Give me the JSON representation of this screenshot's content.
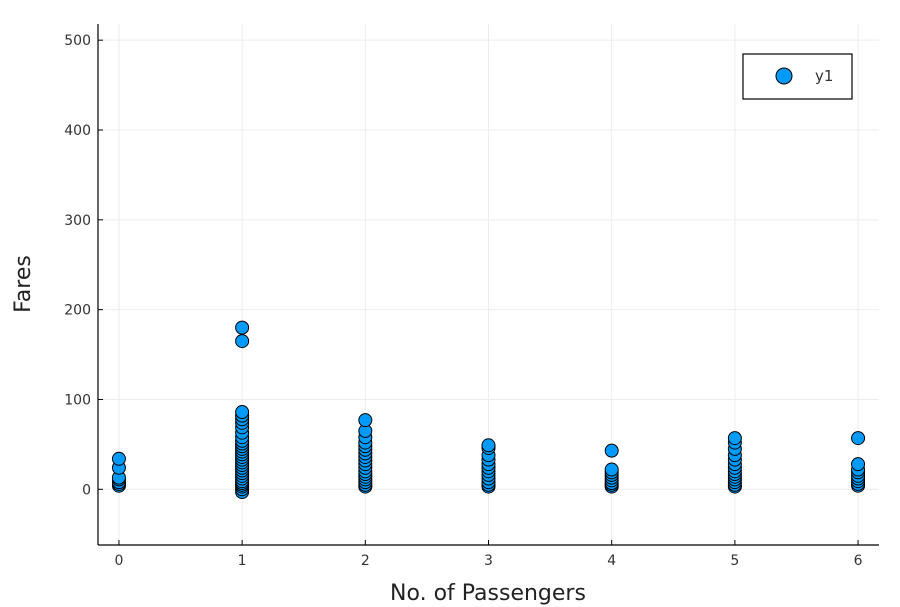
{
  "chart_data": {
    "type": "scatter",
    "title": "",
    "xlabel": "No. of Passengers",
    "ylabel": "Fares",
    "xlim": [
      -0.17,
      6.17
    ],
    "ylim": [
      -62,
      518
    ],
    "xticks": [
      0,
      1,
      2,
      3,
      4,
      5,
      6
    ],
    "yticks": [
      0,
      100,
      200,
      300,
      400,
      500
    ],
    "grid": true,
    "legend": {
      "position": "top-right",
      "entries": [
        "y1"
      ]
    },
    "series": [
      {
        "name": "y1",
        "color": "#009AFA",
        "points": [
          [
            0,
            4
          ],
          [
            0,
            6
          ],
          [
            0,
            8
          ],
          [
            0,
            11
          ],
          [
            0,
            13
          ],
          [
            0,
            24
          ],
          [
            0,
            34
          ],
          [
            1,
            -3
          ],
          [
            1,
            0
          ],
          [
            1,
            3
          ],
          [
            1,
            5
          ],
          [
            1,
            7
          ],
          [
            1,
            9
          ],
          [
            1,
            12
          ],
          [
            1,
            15
          ],
          [
            1,
            18
          ],
          [
            1,
            21
          ],
          [
            1,
            24
          ],
          [
            1,
            27
          ],
          [
            1,
            30
          ],
          [
            1,
            33
          ],
          [
            1,
            36
          ],
          [
            1,
            39
          ],
          [
            1,
            42
          ],
          [
            1,
            45
          ],
          [
            1,
            48
          ],
          [
            1,
            51
          ],
          [
            1,
            54
          ],
          [
            1,
            58
          ],
          [
            1,
            63
          ],
          [
            1,
            69
          ],
          [
            1,
            74
          ],
          [
            1,
            78
          ],
          [
            1,
            82
          ],
          [
            1,
            86
          ],
          [
            1,
            165
          ],
          [
            1,
            180
          ],
          [
            2,
            3
          ],
          [
            2,
            5
          ],
          [
            2,
            8
          ],
          [
            2,
            11
          ],
          [
            2,
            14
          ],
          [
            2,
            17
          ],
          [
            2,
            20
          ],
          [
            2,
            24
          ],
          [
            2,
            28
          ],
          [
            2,
            32
          ],
          [
            2,
            36
          ],
          [
            2,
            40
          ],
          [
            2,
            44
          ],
          [
            2,
            48
          ],
          [
            2,
            52
          ],
          [
            2,
            58
          ],
          [
            2,
            65
          ],
          [
            2,
            77
          ],
          [
            3,
            3
          ],
          [
            3,
            5
          ],
          [
            3,
            8
          ],
          [
            3,
            12
          ],
          [
            3,
            16
          ],
          [
            3,
            20
          ],
          [
            3,
            24
          ],
          [
            3,
            28
          ],
          [
            3,
            33
          ],
          [
            3,
            38
          ],
          [
            3,
            46
          ],
          [
            3,
            49
          ],
          [
            4,
            3
          ],
          [
            4,
            5
          ],
          [
            4,
            7
          ],
          [
            4,
            10
          ],
          [
            4,
            13
          ],
          [
            4,
            16
          ],
          [
            4,
            19
          ],
          [
            4,
            22
          ],
          [
            4,
            43
          ],
          [
            5,
            3
          ],
          [
            5,
            5
          ],
          [
            5,
            8
          ],
          [
            5,
            11
          ],
          [
            5,
            14
          ],
          [
            5,
            17
          ],
          [
            5,
            20
          ],
          [
            5,
            24
          ],
          [
            5,
            28
          ],
          [
            5,
            33
          ],
          [
            5,
            38
          ],
          [
            5,
            45
          ],
          [
            5,
            52
          ],
          [
            5,
            57
          ],
          [
            6,
            4
          ],
          [
            6,
            6
          ],
          [
            6,
            9
          ],
          [
            6,
            12
          ],
          [
            6,
            15
          ],
          [
            6,
            19
          ],
          [
            6,
            22
          ],
          [
            6,
            28
          ],
          [
            6,
            57
          ]
        ]
      }
    ]
  }
}
